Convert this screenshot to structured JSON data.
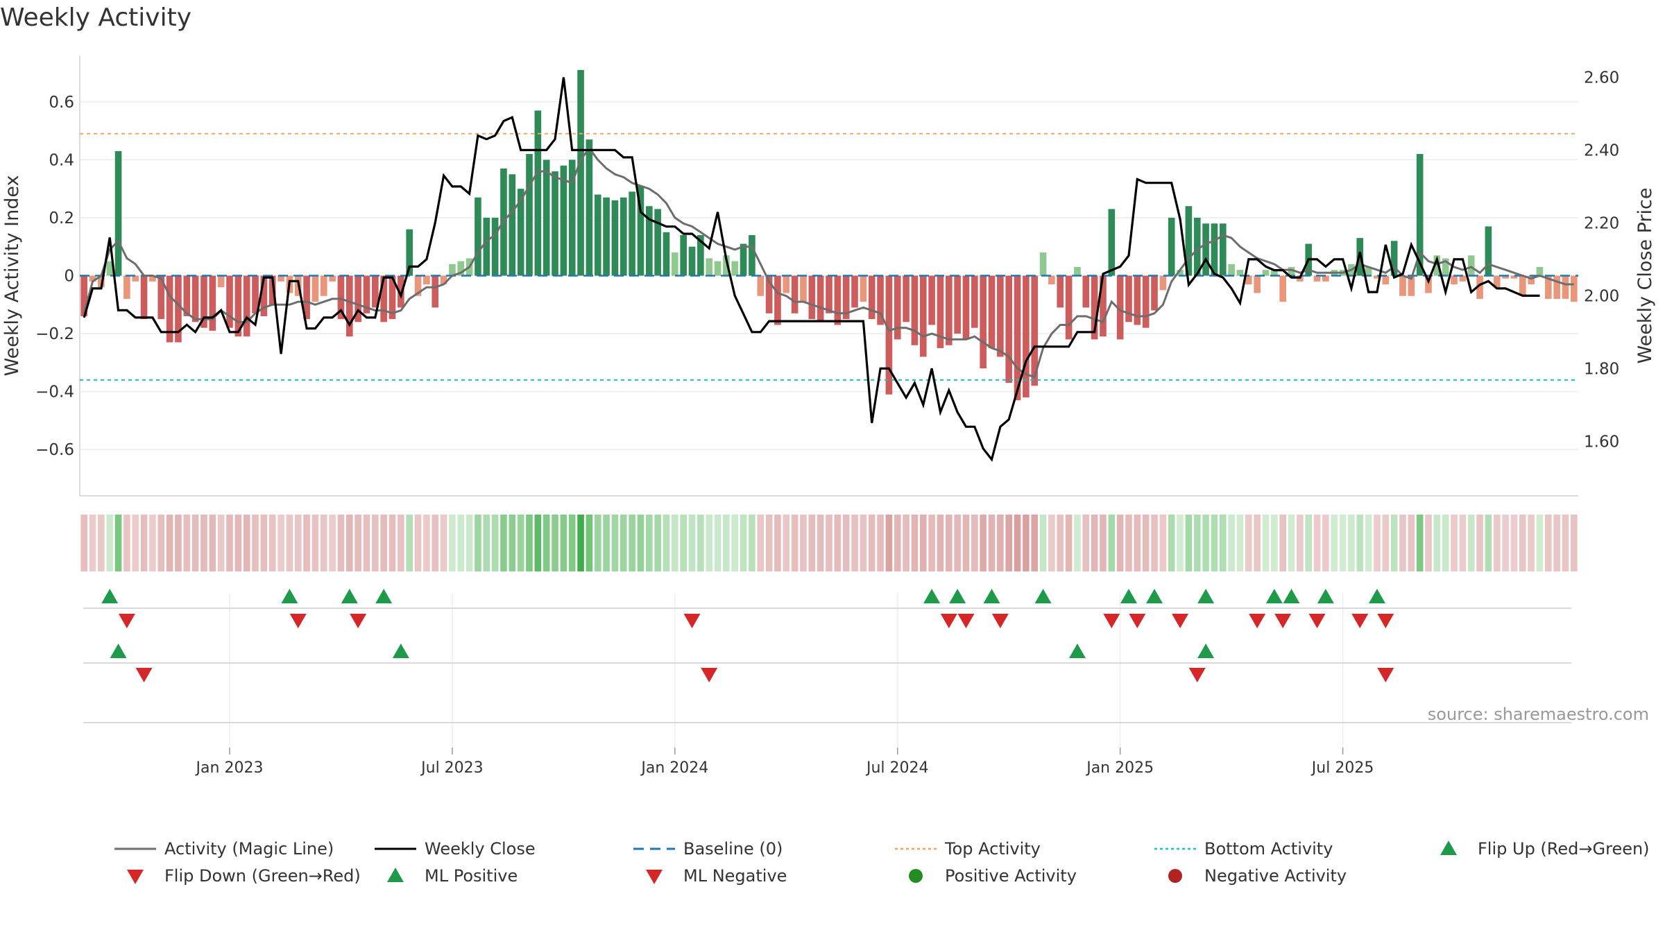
{
  "chart_data": {
    "type": "bar",
    "title": "Weekly Activity",
    "ylabel": "Weekly Activity Index",
    "y2label": "Weekly Close Price",
    "ylim": [
      -0.76,
      0.76
    ],
    "y2lim": [
      1.45,
      2.66
    ],
    "yticks": [
      0.6,
      0.4,
      0.2,
      0,
      -0.2,
      -0.4,
      -0.6
    ],
    "ytick_labels": [
      "0.6",
      "0.4",
      "0.2",
      "0",
      "−0.2",
      "−0.4",
      "−0.6"
    ],
    "y2ticks": [
      2.6,
      2.4,
      2.2,
      2.0,
      1.8,
      1.6
    ],
    "y2tick_labels": [
      "2.60",
      "2.40",
      "2.20",
      "2.00",
      "1.80",
      "1.60"
    ],
    "xtick_labels": [
      "Jan 2023",
      "Jul 2023",
      "Jan 2024",
      "Jul 2024",
      "Jan 2025",
      "Jul 2025"
    ],
    "xtick_weeks": [
      17,
      43,
      69,
      95,
      121,
      147
    ],
    "grid": true,
    "top_activity": 0.49,
    "bottom_activity": -0.36,
    "activity": [
      -0.14,
      -0.02,
      -0.04,
      0.05,
      0.43,
      -0.08,
      -0.02,
      -0.15,
      -0.02,
      -0.15,
      -0.23,
      -0.23,
      -0.14,
      -0.16,
      -0.18,
      -0.19,
      -0.04,
      -0.18,
      -0.21,
      -0.21,
      -0.13,
      -0.14,
      -0.1,
      -0.02,
      -0.06,
      -0.07,
      -0.15,
      -0.09,
      -0.07,
      -0.02,
      -0.15,
      -0.21,
      -0.16,
      -0.13,
      -0.11,
      -0.16,
      -0.15,
      -0.11,
      0.16,
      -0.07,
      -0.03,
      -0.11,
      -0.03,
      0.04,
      0.05,
      0.06,
      0.27,
      0.2,
      0.2,
      0.37,
      0.35,
      0.3,
      0.42,
      0.57,
      0.4,
      0.36,
      0.38,
      0.4,
      0.71,
      0.47,
      0.28,
      0.27,
      0.26,
      0.27,
      0.29,
      0.31,
      0.24,
      0.23,
      0.15,
      0.08,
      0.14,
      0.1,
      0.14,
      0.06,
      0.05,
      0.07,
      0.05,
      0.11,
      0.14,
      -0.07,
      -0.13,
      -0.17,
      -0.06,
      -0.13,
      -0.09,
      -0.15,
      -0.16,
      -0.13,
      -0.17,
      -0.15,
      -0.11,
      -0.09,
      -0.15,
      -0.17,
      -0.41,
      -0.22,
      -0.16,
      -0.24,
      -0.28,
      -0.17,
      -0.25,
      -0.24,
      -0.2,
      -0.22,
      -0.18,
      -0.32,
      -0.25,
      -0.28,
      -0.37,
      -0.43,
      -0.42,
      -0.38,
      0.08,
      -0.03,
      -0.11,
      -0.22,
      0.03,
      -0.11,
      -0.22,
      -0.21,
      0.23,
      -0.22,
      -0.16,
      -0.17,
      -0.18,
      -0.12,
      -0.05,
      0.2,
      0.02,
      0.24,
      0.2,
      0.18,
      0.18,
      0.18,
      0.04,
      0.02,
      -0.03,
      -0.06,
      0.02,
      0.02,
      -0.09,
      0.03,
      -0.02,
      0.11,
      -0.02,
      -0.02,
      0.02,
      0.02,
      0.04,
      0.13,
      0.03,
      -0.01,
      -0.03,
      0.12,
      -0.07,
      -0.07,
      0.42,
      -0.06,
      0.07,
      0.06,
      -0.03,
      -0.02,
      0.07,
      -0.08,
      0.17,
      -0.04,
      -0.01,
      -0.01,
      -0.07,
      -0.03,
      0.03,
      -0.08,
      -0.08,
      -0.08,
      -0.09
    ],
    "magic_line": [
      -0.13,
      -0.02,
      0,
      0.09,
      0.12,
      0.06,
      0.04,
      0,
      0,
      -0.01,
      -0.07,
      -0.1,
      -0.13,
      -0.15,
      -0.15,
      -0.15,
      -0.12,
      -0.14,
      -0.16,
      -0.16,
      -0.13,
      -0.11,
      -0.1,
      -0.1,
      -0.1,
      -0.09,
      -0.09,
      -0.1,
      -0.09,
      -0.08,
      -0.08,
      -0.09,
      -0.1,
      -0.11,
      -0.12,
      -0.12,
      -0.13,
      -0.12,
      -0.08,
      -0.06,
      -0.04,
      -0.04,
      -0.03,
      0,
      0.01,
      0.03,
      0.08,
      0.12,
      0.14,
      0.19,
      0.22,
      0.26,
      0.31,
      0.36,
      0.36,
      0.34,
      0.33,
      0.32,
      0.4,
      0.44,
      0.4,
      0.37,
      0.35,
      0.34,
      0.32,
      0.31,
      0.3,
      0.28,
      0.25,
      0.2,
      0.18,
      0.17,
      0.15,
      0.13,
      0.11,
      0.1,
      0.09,
      0.1,
      0.1,
      0.04,
      -0.02,
      -0.06,
      -0.07,
      -0.09,
      -0.09,
      -0.1,
      -0.11,
      -0.12,
      -0.13,
      -0.13,
      -0.12,
      -0.11,
      -0.12,
      -0.13,
      -0.19,
      -0.18,
      -0.18,
      -0.19,
      -0.21,
      -0.2,
      -0.21,
      -0.22,
      -0.22,
      -0.22,
      -0.21,
      -0.23,
      -0.25,
      -0.26,
      -0.28,
      -0.32,
      -0.34,
      -0.35,
      -0.25,
      -0.2,
      -0.17,
      -0.17,
      -0.14,
      -0.14,
      -0.15,
      -0.16,
      -0.09,
      -0.12,
      -0.13,
      -0.14,
      -0.14,
      -0.13,
      -0.1,
      -0.02,
      0.02,
      0.06,
      0.09,
      0.11,
      0.12,
      0.14,
      0.13,
      0.1,
      0.08,
      0.06,
      0.05,
      0.04,
      0.02,
      0.02,
      0.01,
      0.02,
      0.01,
      0.01,
      0.01,
      0.01,
      0.02,
      0.04,
      0.03,
      0.02,
      0.01,
      0.03,
      0,
      -0.01,
      0.08,
      0.05,
      0.04,
      0.05,
      0.03,
      0.02,
      0.03,
      0.01,
      0.04,
      0.03,
      0.02,
      0.01,
      0,
      -0.01,
      0,
      -0.01,
      -0.02,
      -0.03,
      -0.03
    ],
    "weekly_close": [
      1.94,
      2.02,
      2.02,
      2.16,
      1.96,
      1.96,
      1.94,
      1.94,
      1.94,
      1.9,
      1.9,
      1.9,
      1.92,
      1.9,
      1.94,
      1.94,
      1.96,
      1.9,
      1.9,
      1.94,
      1.92,
      2.05,
      2.05,
      1.84,
      2.04,
      2.04,
      1.91,
      1.91,
      1.94,
      1.94,
      1.96,
      1.92,
      1.96,
      1.94,
      1.94,
      2.05,
      2.05,
      2.0,
      2.08,
      2.08,
      2.1,
      2.2,
      2.33,
      2.3,
      2.3,
      2.28,
      2.44,
      2.43,
      2.44,
      2.48,
      2.49,
      2.4,
      2.4,
      2.4,
      2.4,
      2.43,
      2.6,
      2.4,
      2.4,
      2.4,
      2.4,
      2.4,
      2.4,
      2.38,
      2.38,
      2.23,
      2.21,
      2.2,
      2.19,
      2.19,
      2.17,
      2.17,
      2.15,
      2.13,
      2.23,
      2.1,
      2.0,
      1.95,
      1.9,
      1.9,
      1.93,
      1.93,
      1.93,
      1.93,
      1.93,
      1.93,
      1.93,
      1.93,
      1.93,
      1.93,
      1.93,
      1.93,
      1.65,
      1.8,
      1.8,
      1.76,
      1.72,
      1.76,
      1.7,
      1.8,
      1.68,
      1.74,
      1.68,
      1.64,
      1.64,
      1.58,
      1.55,
      1.64,
      1.66,
      1.74,
      1.82,
      1.86,
      1.86,
      1.86,
      1.86,
      1.86,
      1.9,
      1.9,
      1.9,
      2.06,
      2.07,
      2.08,
      2.11,
      2.32,
      2.31,
      2.31,
      2.31,
      2.31,
      2.21,
      2.03,
      2.06,
      2.1,
      2.06,
      2.05,
      2.02,
      1.98,
      2.1,
      2.1,
      2.08,
      2.07,
      2.07,
      2.05,
      2.05,
      2.1,
      2.1,
      2.08,
      2.1,
      2.1,
      2.02,
      2.12,
      2.01,
      2.01,
      2.14,
      2.05,
      2.06,
      2.14,
      2.09,
      2.04,
      2.1,
      2.01,
      2.1,
      2.1,
      2.01,
      2.03,
      2.04,
      2.02,
      2.02,
      2.01,
      2.0,
      2.0,
      2.0
    ],
    "flip_up_weeks": [
      3,
      24,
      31,
      35,
      99,
      102,
      106,
      112,
      122,
      125,
      131,
      139,
      141,
      145,
      151
    ],
    "flip_down_weeks": [
      5,
      25,
      32,
      71,
      101,
      103,
      107,
      120,
      123,
      128,
      137,
      140,
      144,
      149,
      152
    ],
    "ml_positive_weeks": [
      4,
      37,
      116,
      131
    ],
    "ml_negative_weeks": [
      7,
      73,
      130,
      152
    ],
    "source": "source: sharemaestro.com",
    "legend": [
      {
        "label": "Activity (Magic Line)",
        "symbol": "line",
        "color": "#6d6d6d"
      },
      {
        "label": "Weekly Close",
        "symbol": "line",
        "color": "#000000"
      },
      {
        "label": "Baseline (0)",
        "symbol": "dash",
        "color": "#1f77b4"
      },
      {
        "label": "Top Activity",
        "symbol": "dot",
        "color": "#f4a361"
      },
      {
        "label": "Bottom Activity",
        "symbol": "dot",
        "color": "#17becf"
      },
      {
        "label": "Flip Up (Red→Green)",
        "symbol": "tri-up",
        "color": "#1e9a4a"
      },
      {
        "label": "Flip Down (Green→Red)",
        "symbol": "tri-down",
        "color": "#d62728"
      },
      {
        "label": "ML Positive",
        "symbol": "tri-up",
        "color": "#1e9a4a"
      },
      {
        "label": "ML Negative",
        "symbol": "tri-down",
        "color": "#d62728"
      },
      {
        "label": "Positive Activity",
        "symbol": "circle",
        "color": "#228b22"
      },
      {
        "label": "Negative Activity",
        "symbol": "circle",
        "color": "#b22222"
      }
    ],
    "colors": {
      "pos_dark": "#2e8b57",
      "pos_light": "#8fc98f",
      "neg_dark": "#cd5c5c",
      "neg_light": "#e9967a",
      "line_magic": "#6d6d6d",
      "line_close": "#000000",
      "baseline": "#1f77b4",
      "top": "#f4a361",
      "bottom": "#17becf",
      "up_marker": "#1e9a4a",
      "down_marker": "#d62728"
    }
  }
}
